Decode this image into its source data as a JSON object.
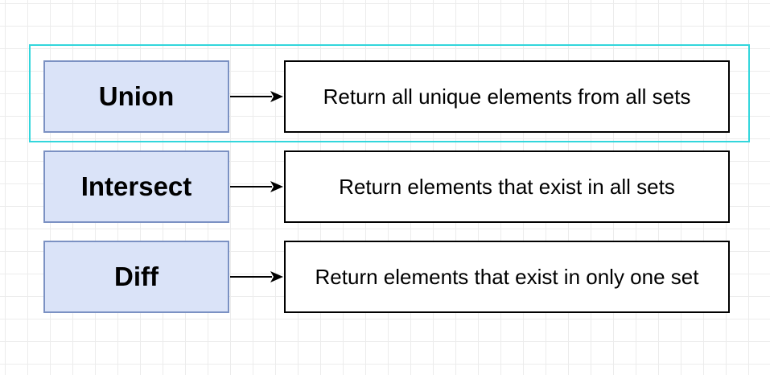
{
  "highlight_color": "#33d6dc",
  "rows": [
    {
      "term": "Union",
      "description": "Return all unique elements from all sets"
    },
    {
      "term": "Intersect",
      "description": "Return elements that exist in all sets"
    },
    {
      "term": "Diff",
      "description": "Return elements that exist in only one set"
    }
  ]
}
